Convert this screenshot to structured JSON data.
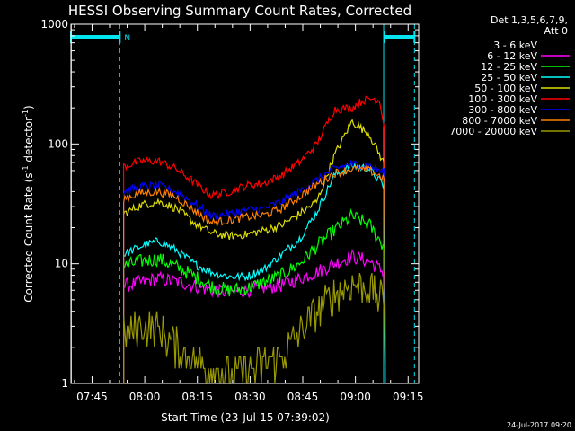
{
  "chart_data": {
    "type": "line",
    "title": "HESSI Observing Summary Count Rates, Corrected",
    "xlabel": "Start Time (23-Jul-15 07:39:02)",
    "ylabel": "Corrected Count Rate (s⁻¹ detector⁻¹)",
    "ylabel_main": "Corrected Count Rate (s",
    "ylabel_sup1": "-1",
    "ylabel_mid": " detector",
    "ylabel_sup2": "-1",
    "ylabel_end": ")",
    "yscale": "log",
    "ylim": [
      1,
      1000
    ],
    "xlim": [
      "07:39",
      "09:18"
    ],
    "x_ticks": [
      "07:45",
      "08:00",
      "08:15",
      "08:30",
      "08:45",
      "09:00",
      "09:15"
    ],
    "y_ticks": [
      "1",
      "10",
      "100",
      "1000"
    ],
    "legend_header": [
      "Det 1,3,5,6,7,9,",
      "Att 0"
    ],
    "legend_position": "right",
    "markers": {
      "solid_lines_min": [
        0,
        88.9
      ],
      "dashed_lines_min": [
        13.9,
        97.8
      ],
      "night_bars_min": [
        [
          0,
          13.9
        ],
        [
          89.3,
          97.8
        ]
      ],
      "night_label": "N",
      "color": "#00e5ee"
    },
    "data_window_min": [
      15,
      89.5
    ],
    "series": [
      {
        "name": "3 - 6 keV",
        "color": "#000000",
        "points": [
          [
            15,
            13.5
          ],
          [
            25,
            14.5
          ],
          [
            33,
            13.8
          ],
          [
            40,
            12.8
          ],
          [
            45,
            12.5
          ],
          [
            50,
            13
          ],
          [
            55,
            13.8
          ],
          [
            60,
            14
          ],
          [
            65,
            14.5
          ],
          [
            70,
            15
          ],
          [
            75,
            15.5
          ],
          [
            80,
            15.8
          ],
          [
            85,
            15.8
          ],
          [
            89,
            14.8
          ]
        ]
      },
      {
        "name": "6 - 12 keV",
        "color": "#ff00ff",
        "points": [
          [
            15,
            6.5
          ],
          [
            20,
            7
          ],
          [
            25,
            7.5
          ],
          [
            33,
            6.8
          ],
          [
            40,
            6
          ],
          [
            45,
            5.8
          ],
          [
            50,
            6
          ],
          [
            55,
            6.3
          ],
          [
            60,
            6.6
          ],
          [
            65,
            7.5
          ],
          [
            70,
            8.5
          ],
          [
            75,
            10
          ],
          [
            80,
            11.5
          ],
          [
            85,
            10.5
          ],
          [
            89,
            8.5
          ]
        ]
      },
      {
        "name": "12 - 25 keV",
        "color": "#00ff00",
        "points": [
          [
            15,
            9.5
          ],
          [
            20,
            10.5
          ],
          [
            25,
            11
          ],
          [
            33,
            8.5
          ],
          [
            40,
            6.5
          ],
          [
            45,
            6
          ],
          [
            50,
            6.2
          ],
          [
            55,
            7
          ],
          [
            60,
            8
          ],
          [
            65,
            10
          ],
          [
            70,
            14
          ],
          [
            75,
            19
          ],
          [
            80,
            25
          ],
          [
            85,
            21
          ],
          [
            89,
            14
          ]
        ]
      },
      {
        "name": "25 - 50 keV",
        "color": "#00ffff",
        "points": [
          [
            15,
            12
          ],
          [
            20,
            14
          ],
          [
            25,
            15.5
          ],
          [
            30,
            13
          ],
          [
            35,
            10
          ],
          [
            40,
            8.5
          ],
          [
            45,
            7.8
          ],
          [
            50,
            7.8
          ],
          [
            55,
            9
          ],
          [
            60,
            12
          ],
          [
            65,
            16
          ],
          [
            70,
            27
          ],
          [
            75,
            55
          ],
          [
            80,
            66
          ],
          [
            85,
            62
          ],
          [
            89,
            45
          ]
        ]
      },
      {
        "name": "50 - 100 keV",
        "color": "#dddd00",
        "points": [
          [
            15,
            26
          ],
          [
            20,
            31
          ],
          [
            25,
            33
          ],
          [
            30,
            29
          ],
          [
            35,
            22
          ],
          [
            40,
            18
          ],
          [
            45,
            17
          ],
          [
            50,
            17.5
          ],
          [
            55,
            19
          ],
          [
            60,
            21
          ],
          [
            65,
            26
          ],
          [
            70,
            33
          ],
          [
            75,
            80
          ],
          [
            80,
            155
          ],
          [
            85,
            120
          ],
          [
            89,
            70
          ]
        ]
      },
      {
        "name": "100 - 300 keV",
        "color": "#ff0000",
        "points": [
          [
            15,
            65
          ],
          [
            20,
            72
          ],
          [
            25,
            72
          ],
          [
            30,
            62
          ],
          [
            35,
            48
          ],
          [
            40,
            37
          ],
          [
            45,
            40
          ],
          [
            50,
            45
          ],
          [
            55,
            47
          ],
          [
            60,
            55
          ],
          [
            65,
            70
          ],
          [
            70,
            100
          ],
          [
            75,
            195
          ],
          [
            80,
            200
          ],
          [
            83,
            230
          ],
          [
            86,
            240
          ],
          [
            88,
            230
          ],
          [
            89.5,
            120
          ]
        ]
      },
      {
        "name": "300 - 800 keV",
        "color": "#0000ff",
        "points": [
          [
            15,
            40
          ],
          [
            20,
            44
          ],
          [
            25,
            45
          ],
          [
            30,
            40
          ],
          [
            35,
            32
          ],
          [
            40,
            25
          ],
          [
            45,
            26
          ],
          [
            50,
            28
          ],
          [
            55,
            29
          ],
          [
            60,
            33
          ],
          [
            65,
            40
          ],
          [
            70,
            50
          ],
          [
            75,
            62
          ],
          [
            80,
            68
          ],
          [
            85,
            66
          ],
          [
            89,
            58
          ]
        ]
      },
      {
        "name": "800 - 7000 keV",
        "color": "#ff8000",
        "points": [
          [
            15,
            35
          ],
          [
            20,
            39
          ],
          [
            25,
            40
          ],
          [
            30,
            36
          ],
          [
            35,
            28
          ],
          [
            40,
            22
          ],
          [
            45,
            23
          ],
          [
            50,
            24.5
          ],
          [
            55,
            25.5
          ],
          [
            60,
            29
          ],
          [
            65,
            36
          ],
          [
            70,
            46
          ],
          [
            75,
            57
          ],
          [
            80,
            62
          ],
          [
            85,
            60
          ],
          [
            89,
            52
          ]
        ]
      },
      {
        "name": "7000 - 20000 keV",
        "color": "#999900",
        "points": [
          [
            15,
            2.5
          ],
          [
            20,
            3
          ],
          [
            25,
            2.8
          ],
          [
            30,
            2
          ],
          [
            35,
            1.6
          ],
          [
            40,
            1.3
          ],
          [
            45,
            1.2
          ],
          [
            50,
            1.3
          ],
          [
            55,
            1.4
          ],
          [
            60,
            1.7
          ],
          [
            65,
            2.6
          ],
          [
            70,
            4
          ],
          [
            75,
            5.5
          ],
          [
            80,
            6.8
          ],
          [
            85,
            6.2
          ],
          [
            89,
            4.8
          ]
        ]
      }
    ]
  },
  "timestamp": "24-Jul-2017 09:20"
}
